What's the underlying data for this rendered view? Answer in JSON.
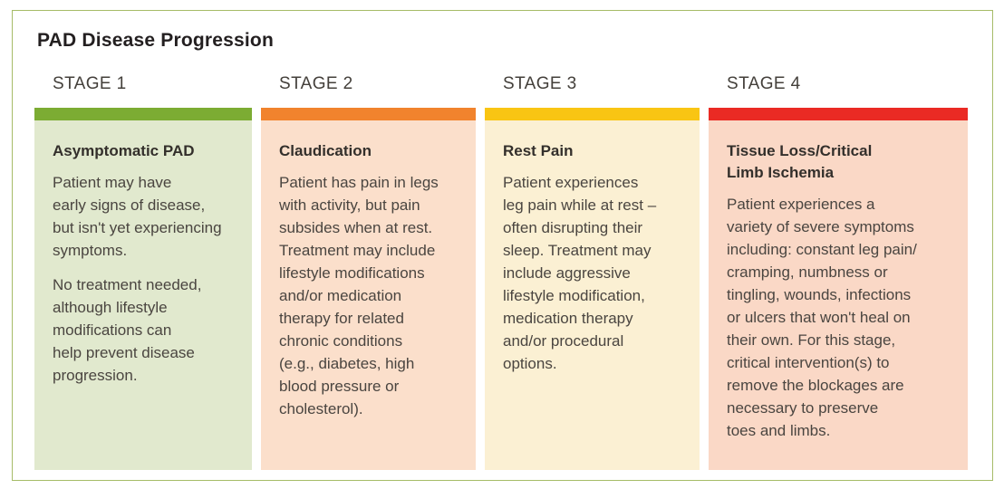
{
  "title": "PAD Disease Progression",
  "colors": {
    "card_border": "#A6BC68",
    "title_text": "#231F20",
    "stage_label_text": "#44403B",
    "heading_text": "#332F2B",
    "body_text": "#4A4540"
  },
  "stages": [
    {
      "label": "STAGE 1",
      "bar_color": "#7CAC33",
      "bg_color": "#E1E9CE",
      "heading": "Asymptomatic PAD",
      "para1": "Patient may have\nearly signs of disease,\nbut isn't yet experiencing\nsymptoms.",
      "para2": "No treatment needed,\nalthough lifestyle\nmodifications can\nhelp prevent disease\nprogression."
    },
    {
      "label": "STAGE 2",
      "bar_color": "#F1832D",
      "bg_color": "#FBDFCB",
      "heading": "Claudication",
      "para1": "Patient has pain in legs\nwith activity, but pain\nsubsides when at rest.\nTreatment may include\nlifestyle modifications\nand/or medication\ntherapy for related\nchronic conditions\n(e.g., diabetes, high\nblood pressure or\ncholesterol)."
    },
    {
      "label": "STAGE 3",
      "bar_color": "#F9C513",
      "bg_color": "#FBF0D3",
      "heading": "Rest Pain",
      "para1": "Patient experiences\nleg pain while at rest –\noften disrupting their\nsleep. Treatment may\ninclude aggressive\nlifestyle modification,\nmedication therapy\nand/or procedural\noptions."
    },
    {
      "label": "STAGE 4",
      "bar_color": "#EA2A24",
      "bg_color": "#FAD8C6",
      "heading": "Tissue Loss/Critical\nLimb Ischemia",
      "para1": "Patient experiences a\nvariety of severe symptoms\nincluding: constant leg pain/\ncramping, numbness or\ntingling, wounds, infections\nor ulcers that won't heal on\ntheir own. For this stage,\ncritical intervention(s) to\nremove the blockages are\nnecessary to preserve\ntoes and limbs."
    }
  ]
}
